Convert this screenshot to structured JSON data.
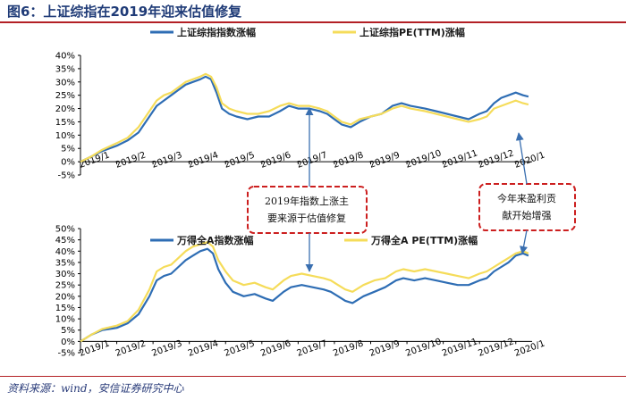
{
  "figure_title": "图6：上证综指在2019年迎来估值修复",
  "source": "资料来源：wind，安信证券研究中心",
  "colors": {
    "index": "#2e6db4",
    "pe": "#f5dc5a",
    "callout": "#cc1f1f",
    "arrow": "#3a6fb0",
    "rule": "#b32025"
  },
  "callouts": [
    {
      "lines": [
        "2019年指数上涨主",
        "要来源于估值修复"
      ]
    },
    {
      "lines": [
        "今年来盈利贡",
        "献开始增强"
      ]
    }
  ],
  "chart_data": [
    {
      "type": "line",
      "title": "",
      "x_tick_labels": [
        "2019/1",
        "2019/2",
        "2019/3",
        "2019/4",
        "2019/5",
        "2019/6",
        "2019/7",
        "2019/8",
        "2019/9",
        "2019/10",
        "2019/11",
        "2019/12",
        "2020/1"
      ],
      "y_tick_labels": [
        "-5%",
        "0%",
        "5%",
        "10%",
        "15%",
        "20%",
        "25%",
        "30%",
        "35%",
        "40%"
      ],
      "ylim": [
        -5,
        40
      ],
      "xlim": [
        0,
        12.45
      ],
      "legend_position": "top",
      "series": [
        {
          "name": "上证综指指数涨幅",
          "color": "#2e6db4",
          "points": [
            [
              0,
              0
            ],
            [
              0.3,
              2
            ],
            [
              0.6,
              4
            ],
            [
              1,
              6
            ],
            [
              1.3,
              8
            ],
            [
              1.6,
              11
            ],
            [
              1.9,
              17
            ],
            [
              2.1,
              21
            ],
            [
              2.3,
              23
            ],
            [
              2.5,
              25
            ],
            [
              2.7,
              27
            ],
            [
              2.9,
              29
            ],
            [
              3.1,
              30
            ],
            [
              3.3,
              31
            ],
            [
              3.45,
              32
            ],
            [
              3.6,
              31
            ],
            [
              3.75,
              26
            ],
            [
              3.9,
              20
            ],
            [
              4.1,
              18
            ],
            [
              4.3,
              17
            ],
            [
              4.6,
              16
            ],
            [
              4.9,
              17
            ],
            [
              5.2,
              17
            ],
            [
              5.5,
              19
            ],
            [
              5.75,
              21
            ],
            [
              6,
              20
            ],
            [
              6.3,
              20
            ],
            [
              6.6,
              19
            ],
            [
              6.8,
              18
            ],
            [
              7,
              16
            ],
            [
              7.2,
              14
            ],
            [
              7.45,
              13
            ],
            [
              7.7,
              15
            ],
            [
              8,
              17
            ],
            [
              8.3,
              18
            ],
            [
              8.6,
              21
            ],
            [
              8.85,
              22
            ],
            [
              9.1,
              21
            ],
            [
              9.5,
              20
            ],
            [
              9.8,
              19
            ],
            [
              10.1,
              18
            ],
            [
              10.4,
              17
            ],
            [
              10.7,
              16
            ],
            [
              11,
              18
            ],
            [
              11.2,
              19
            ],
            [
              11.4,
              22
            ],
            [
              11.6,
              24
            ],
            [
              11.8,
              25
            ],
            [
              12,
              26
            ],
            [
              12.2,
              25
            ],
            [
              12.35,
              24.5
            ]
          ]
        },
        {
          "name": "上证综指PE(TTM)涨幅",
          "color": "#f5dc5a",
          "points": [
            [
              0,
              0
            ],
            [
              0.3,
              2
            ],
            [
              0.6,
              4.5
            ],
            [
              1,
              7
            ],
            [
              1.3,
              9
            ],
            [
              1.6,
              13
            ],
            [
              1.9,
              19
            ],
            [
              2.1,
              23
            ],
            [
              2.3,
              25
            ],
            [
              2.5,
              26
            ],
            [
              2.7,
              28
            ],
            [
              2.9,
              30
            ],
            [
              3.1,
              31
            ],
            [
              3.3,
              32
            ],
            [
              3.45,
              33
            ],
            [
              3.6,
              32
            ],
            [
              3.75,
              28
            ],
            [
              3.9,
              22
            ],
            [
              4.1,
              20
            ],
            [
              4.3,
              19
            ],
            [
              4.6,
              18
            ],
            [
              4.9,
              18
            ],
            [
              5.2,
              19
            ],
            [
              5.5,
              21
            ],
            [
              5.75,
              22
            ],
            [
              6,
              21
            ],
            [
              6.3,
              21
            ],
            [
              6.6,
              20
            ],
            [
              6.8,
              19
            ],
            [
              7,
              17
            ],
            [
              7.2,
              15
            ],
            [
              7.45,
              14
            ],
            [
              7.7,
              16
            ],
            [
              8,
              17
            ],
            [
              8.3,
              18
            ],
            [
              8.6,
              20
            ],
            [
              8.85,
              21
            ],
            [
              9.1,
              20
            ],
            [
              9.5,
              19
            ],
            [
              9.8,
              18
            ],
            [
              10.1,
              17
            ],
            [
              10.4,
              16
            ],
            [
              10.7,
              15
            ],
            [
              11,
              16
            ],
            [
              11.2,
              17
            ],
            [
              11.4,
              20
            ],
            [
              11.6,
              21
            ],
            [
              11.8,
              22
            ],
            [
              12,
              23
            ],
            [
              12.2,
              22
            ],
            [
              12.35,
              21.5
            ]
          ]
        }
      ]
    },
    {
      "type": "line",
      "title": "",
      "x_tick_labels": [
        "2019/1",
        "2019/2",
        "2019/3",
        "2019/4",
        "2019/5",
        "2019/6",
        "2019/7",
        "2019/8",
        "2019/9",
        "2019/10",
        "2019/11",
        "2019/12",
        "2020/1"
      ],
      "y_tick_labels": [
        "-5%",
        "0%",
        "5%",
        "10%",
        "15%",
        "20%",
        "25%",
        "30%",
        "35%",
        "40%",
        "45%",
        "50%"
      ],
      "ylim": [
        -5,
        50
      ],
      "xlim": [
        0,
        12.45
      ],
      "legend_position": "top",
      "series": [
        {
          "name": "万得全A指数涨幅",
          "color": "#2e6db4",
          "points": [
            [
              0,
              0
            ],
            [
              0.3,
              3
            ],
            [
              0.6,
              5
            ],
            [
              1,
              6
            ],
            [
              1.3,
              8
            ],
            [
              1.6,
              12
            ],
            [
              1.9,
              20
            ],
            [
              2.1,
              27
            ],
            [
              2.3,
              29
            ],
            [
              2.5,
              30
            ],
            [
              2.7,
              33
            ],
            [
              2.9,
              36
            ],
            [
              3.1,
              38
            ],
            [
              3.3,
              40
            ],
            [
              3.5,
              41
            ],
            [
              3.65,
              39
            ],
            [
              3.8,
              32
            ],
            [
              4,
              26
            ],
            [
              4.2,
              22
            ],
            [
              4.5,
              20
            ],
            [
              4.8,
              21
            ],
            [
              5.1,
              19
            ],
            [
              5.3,
              18
            ],
            [
              5.6,
              22
            ],
            [
              5.8,
              24
            ],
            [
              6.1,
              25
            ],
            [
              6.4,
              24
            ],
            [
              6.7,
              23
            ],
            [
              6.9,
              22
            ],
            [
              7.1,
              20
            ],
            [
              7.3,
              18
            ],
            [
              7.5,
              17
            ],
            [
              7.8,
              20
            ],
            [
              8.1,
              22
            ],
            [
              8.4,
              24
            ],
            [
              8.7,
              27
            ],
            [
              8.9,
              28
            ],
            [
              9.2,
              27
            ],
            [
              9.5,
              28
            ],
            [
              9.8,
              27
            ],
            [
              10.1,
              26
            ],
            [
              10.4,
              25
            ],
            [
              10.7,
              25
            ],
            [
              11,
              27
            ],
            [
              11.2,
              28
            ],
            [
              11.4,
              31
            ],
            [
              11.6,
              33
            ],
            [
              11.8,
              35
            ],
            [
              12,
              38
            ],
            [
              12.2,
              39
            ],
            [
              12.35,
              38
            ]
          ]
        },
        {
          "name": "万得全A PE(TTM)涨幅",
          "color": "#f5dc5a",
          "points": [
            [
              0,
              0
            ],
            [
              0.3,
              3
            ],
            [
              0.6,
              5.5
            ],
            [
              1,
              7
            ],
            [
              1.3,
              9
            ],
            [
              1.6,
              14
            ],
            [
              1.9,
              23
            ],
            [
              2.1,
              31
            ],
            [
              2.3,
              33
            ],
            [
              2.5,
              34
            ],
            [
              2.7,
              37
            ],
            [
              2.9,
              40
            ],
            [
              3.1,
              42
            ],
            [
              3.3,
              43
            ],
            [
              3.5,
              44
            ],
            [
              3.65,
              42
            ],
            [
              3.8,
              36
            ],
            [
              4,
              31
            ],
            [
              4.2,
              27
            ],
            [
              4.5,
              25
            ],
            [
              4.8,
              26
            ],
            [
              5.1,
              24
            ],
            [
              5.3,
              23
            ],
            [
              5.6,
              27
            ],
            [
              5.8,
              29
            ],
            [
              6.1,
              30
            ],
            [
              6.4,
              29
            ],
            [
              6.7,
              28
            ],
            [
              6.9,
              27
            ],
            [
              7.1,
              25
            ],
            [
              7.3,
              23
            ],
            [
              7.5,
              22
            ],
            [
              7.8,
              25
            ],
            [
              8.1,
              27
            ],
            [
              8.4,
              28
            ],
            [
              8.7,
              31
            ],
            [
              8.9,
              32
            ],
            [
              9.2,
              31
            ],
            [
              9.5,
              32
            ],
            [
              9.8,
              31
            ],
            [
              10.1,
              30
            ],
            [
              10.4,
              29
            ],
            [
              10.7,
              28
            ],
            [
              11,
              30
            ],
            [
              11.2,
              31
            ],
            [
              11.4,
              33
            ],
            [
              11.6,
              35
            ],
            [
              11.8,
              37
            ],
            [
              12,
              39
            ],
            [
              12.2,
              40
            ],
            [
              12.35,
              39
            ]
          ]
        }
      ]
    }
  ]
}
